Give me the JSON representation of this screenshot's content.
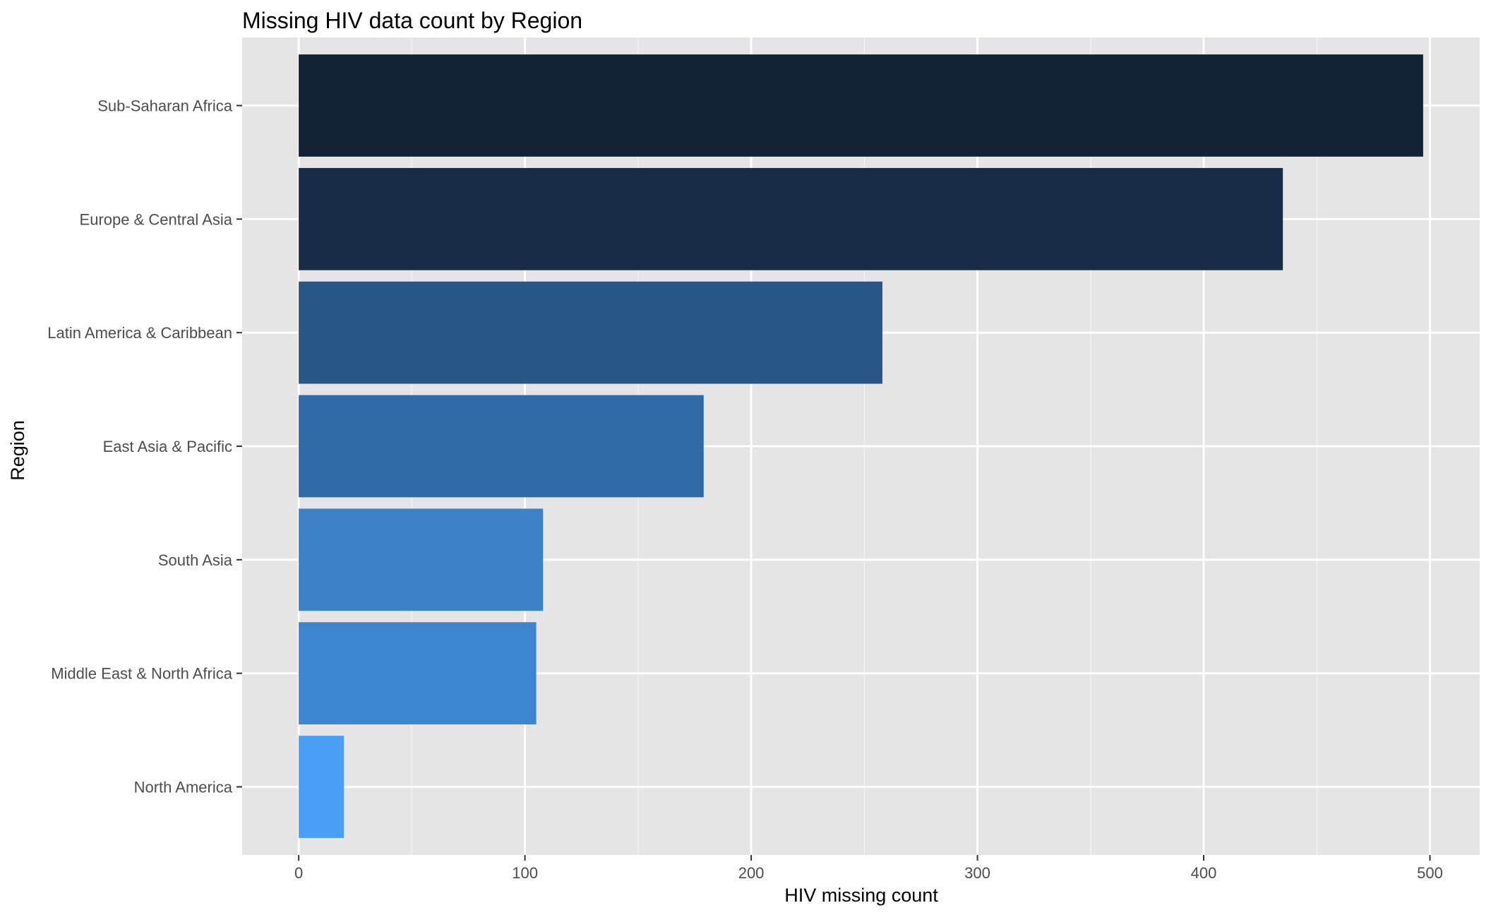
{
  "chart_data": {
    "type": "bar",
    "orientation": "horizontal",
    "title": "Missing HIV data count by Region",
    "xlabel": "HIV missing count",
    "ylabel": "Region",
    "categories": [
      "Sub-Saharan Africa",
      "Europe & Central Asia",
      "Latin America & Caribbean",
      "East Asia & Pacific",
      "South Asia",
      "Middle East & North Africa",
      "North America"
    ],
    "values": [
      497,
      435,
      258,
      179,
      108,
      105,
      20
    ],
    "bar_colors": [
      "#132335",
      "#182c48",
      "#285785",
      "#316ba7",
      "#3d82c8",
      "#3d85ce",
      "#489ff5"
    ],
    "xlim": [
      -25,
      522
    ],
    "xticks": [
      0,
      100,
      200,
      300,
      400,
      500
    ],
    "x_minor_ticks": [
      50,
      150,
      250,
      350,
      450
    ],
    "grid": true,
    "panel_background": "#e5e5e5",
    "legend": "none"
  }
}
